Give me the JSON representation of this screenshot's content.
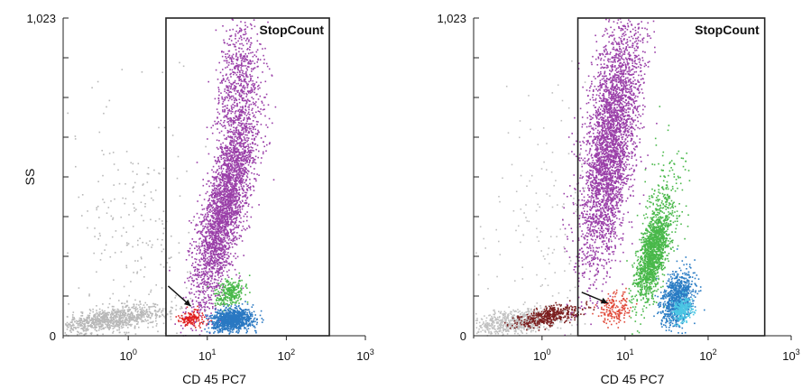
{
  "chart_data": [
    {
      "type": "scatter",
      "title": "",
      "xlabel": "CD 45 PC7",
      "ylabel": "SS",
      "x_scale": "log",
      "xlim": [
        0.15,
        1000
      ],
      "ylim": [
        0,
        1023
      ],
      "y_tick_labels": [
        "0",
        "1,023"
      ],
      "x_tick_labels": [
        {
          "base": "10",
          "exp": "0",
          "value": 1
        },
        {
          "base": "10",
          "exp": "1",
          "value": 10
        },
        {
          "base": "10",
          "exp": "2",
          "value": 100
        },
        {
          "base": "10",
          "exp": "3",
          "value": 1000
        }
      ],
      "gate": {
        "label": "StopCount",
        "x_range": [
          3,
          350
        ],
        "y_range": [
          0,
          1023
        ]
      },
      "arrow": {
        "from": [
          3.2,
          160
        ],
        "to": [
          6.2,
          95
        ]
      },
      "series": [
        {
          "color": "#b8b8b8",
          "clusters": [
            {
              "x": 0.6,
              "y": 55,
              "sx": 0.35,
              "sy": 22,
              "n": 900,
              "corr": 0.55
            },
            {
              "x": 1.2,
              "y": 300,
              "sx": 0.45,
              "sy": 220,
              "n": 260,
              "corr": 0.0
            }
          ]
        },
        {
          "color": "#9a3fa8",
          "clusters": [
            {
              "x": 16,
              "y": 410,
              "sx": 0.2,
              "sy": 165,
              "n": 2800,
              "corr": 0.75
            },
            {
              "x": 24,
              "y": 820,
              "sx": 0.14,
              "sy": 110,
              "n": 650,
              "corr": 0.3
            }
          ]
        },
        {
          "color": "#49b84a",
          "clusters": [
            {
              "x": 19,
              "y": 140,
              "sx": 0.09,
              "sy": 22,
              "n": 260,
              "corr": 0.2
            }
          ]
        },
        {
          "color": "#2a78c2",
          "clusters": [
            {
              "x": 20,
              "y": 55,
              "sx": 0.13,
              "sy": 18,
              "n": 950,
              "corr": 0.1
            }
          ]
        },
        {
          "color": "#e02020",
          "clusters": [
            {
              "x": 6.2,
              "y": 58,
              "sx": 0.08,
              "sy": 14,
              "n": 140,
              "corr": 0.1
            }
          ]
        }
      ]
    },
    {
      "type": "scatter",
      "title": "",
      "xlabel": "CD 45 PC7",
      "ylabel": "",
      "x_scale": "log",
      "xlim": [
        0.15,
        1000
      ],
      "ylim": [
        0,
        1023
      ],
      "y_tick_labels": [
        "0",
        "1,023"
      ],
      "x_tick_labels": [
        {
          "base": "10",
          "exp": "0",
          "value": 1
        },
        {
          "base": "10",
          "exp": "1",
          "value": 10
        },
        {
          "base": "10",
          "exp": "2",
          "value": 100
        },
        {
          "base": "10",
          "exp": "3",
          "value": 1000
        }
      ],
      "gate": {
        "label": "StopCount",
        "x_range": [
          2.7,
          480
        ],
        "y_range": [
          0,
          1023
        ]
      },
      "arrow": {
        "from": [
          3.0,
          140
        ],
        "to": [
          6.2,
          105
        ]
      },
      "series": [
        {
          "color": "#c0c0c0",
          "clusters": [
            {
              "x": 0.45,
              "y": 45,
              "sx": 0.28,
              "sy": 22,
              "n": 700,
              "corr": 0.5
            },
            {
              "x": 1.2,
              "y": 330,
              "sx": 0.4,
              "sy": 230,
              "n": 140,
              "corr": 0.0
            }
          ]
        },
        {
          "color": "#7a1d1d",
          "clusters": [
            {
              "x": 1.2,
              "y": 65,
              "sx": 0.2,
              "sy": 18,
              "n": 420,
              "corr": 0.6
            }
          ]
        },
        {
          "color": "#9a3fa8",
          "clusters": [
            {
              "x": 6.5,
              "y": 620,
              "sx": 0.18,
              "sy": 210,
              "n": 3400,
              "corr": 0.55
            }
          ]
        },
        {
          "color": "#49b84a",
          "clusters": [
            {
              "x": 21,
              "y": 270,
              "sx": 0.1,
              "sy": 75,
              "n": 1500,
              "corr": 0.6
            },
            {
              "x": 30,
              "y": 440,
              "sx": 0.12,
              "sy": 90,
              "n": 180,
              "corr": 0.2
            }
          ]
        },
        {
          "color": "#2a7cc4",
          "clusters": [
            {
              "x": 42,
              "y": 120,
              "sx": 0.1,
              "sy": 45,
              "n": 900,
              "corr": 0.3
            }
          ]
        },
        {
          "color": "#4cc7e4",
          "clusters": [
            {
              "x": 48,
              "y": 85,
              "sx": 0.06,
              "sy": 20,
              "n": 260,
              "corr": 0.2
            }
          ]
        },
        {
          "color": "#e04a3a",
          "clusters": [
            {
              "x": 7.5,
              "y": 90,
              "sx": 0.1,
              "sy": 25,
              "n": 180,
              "corr": 0.1
            }
          ]
        }
      ]
    }
  ]
}
